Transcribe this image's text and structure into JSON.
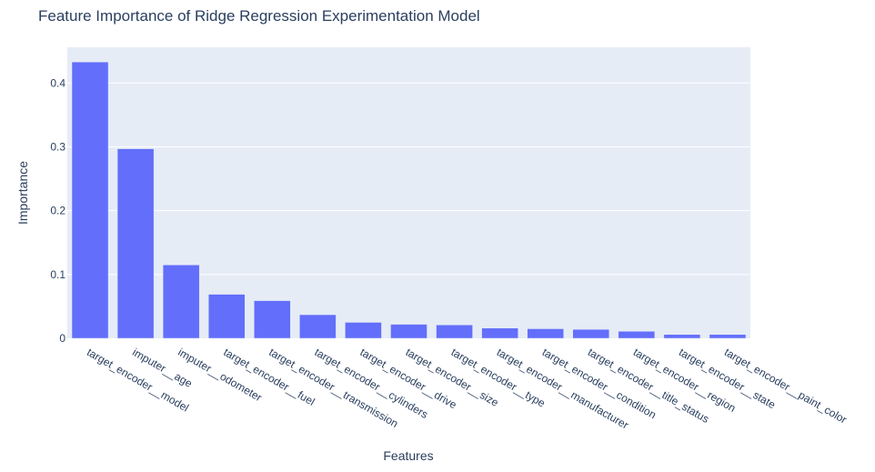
{
  "chart_data": {
    "type": "bar",
    "title": "Feature Importance of Ridge Regression Experimentation Model",
    "xlabel": "Features",
    "ylabel": "Importance",
    "ylim": [
      0,
      0.456
    ],
    "yticks": [
      0,
      0.1,
      0.2,
      0.3,
      0.4
    ],
    "ytick_labels": [
      "0",
      "0.1",
      "0.2",
      "0.3",
      "0.4"
    ],
    "grid": true,
    "colors": {
      "bar": "#636efa",
      "plot_bg": "#e5ecf6",
      "grid": "#ffffff",
      "text": "#2a3f5f"
    },
    "categories": [
      "target_encoder__model",
      "imputer__age",
      "imputer__odometer",
      "target_encoder__fuel",
      "target_encoder__transmission",
      "target_encoder__cylinders",
      "target_encoder__drive",
      "target_encoder__size",
      "target_encoder__type",
      "target_encoder__manufacturer",
      "target_encoder__condition",
      "target_encoder__title_status",
      "target_encoder__region",
      "target_encoder__state",
      "target_encoder__paint_color"
    ],
    "values": [
      0.433,
      0.297,
      0.115,
      0.069,
      0.059,
      0.037,
      0.025,
      0.022,
      0.021,
      0.016,
      0.015,
      0.014,
      0.011,
      0.006,
      0.006
    ]
  }
}
